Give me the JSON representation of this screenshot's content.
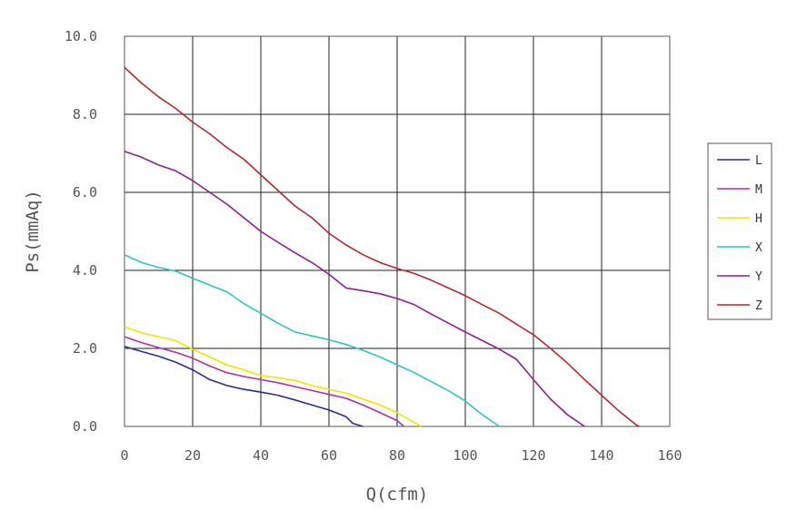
{
  "chart_data": {
    "type": "line",
    "title": "",
    "xlabel": "Q(cfm)",
    "ylabel": "Ps(mmAq)",
    "xlim": [
      0,
      160
    ],
    "ylim": [
      0,
      10
    ],
    "xticks": [
      0,
      20,
      40,
      60,
      80,
      100,
      120,
      140,
      160
    ],
    "xtick_labels": [
      "0",
      "20",
      "40",
      "60",
      "80",
      "100",
      "120",
      "140",
      "160"
    ],
    "yticks": [
      0,
      2,
      4,
      6,
      8,
      10
    ],
    "ytick_labels": [
      "0.0",
      "2.0",
      "4.0",
      "6.0",
      "8.0",
      "10.0"
    ],
    "grid": true,
    "legend_position": "right",
    "series": [
      {
        "name": "L",
        "color": "#2b2d8c",
        "x": [
          0,
          5,
          10,
          15,
          20,
          25,
          30,
          35,
          40,
          45,
          50,
          55,
          60,
          65,
          67,
          70
        ],
        "y": [
          2.05,
          1.92,
          1.8,
          1.65,
          1.45,
          1.2,
          1.05,
          0.95,
          0.88,
          0.8,
          0.68,
          0.55,
          0.42,
          0.25,
          0.08,
          0.0
        ]
      },
      {
        "name": "M",
        "color": "#b0309e",
        "x": [
          0,
          5,
          10,
          15,
          20,
          25,
          30,
          35,
          40,
          45,
          50,
          55,
          60,
          65,
          70,
          75,
          80,
          82
        ],
        "y": [
          2.3,
          2.15,
          2.02,
          1.9,
          1.75,
          1.55,
          1.38,
          1.28,
          1.2,
          1.12,
          1.02,
          0.92,
          0.82,
          0.72,
          0.55,
          0.35,
          0.15,
          0.0
        ]
      },
      {
        "name": "H",
        "color": "#f2e600",
        "x": [
          0,
          5,
          10,
          15,
          20,
          25,
          30,
          35,
          40,
          45,
          50,
          55,
          60,
          65,
          70,
          75,
          80,
          85,
          87
        ],
        "y": [
          2.55,
          2.4,
          2.3,
          2.2,
          1.98,
          1.78,
          1.58,
          1.45,
          1.3,
          1.25,
          1.18,
          1.05,
          0.95,
          0.85,
          0.7,
          0.55,
          0.35,
          0.1,
          0.0
        ]
      },
      {
        "name": "X",
        "color": "#2ec4c0",
        "x": [
          0,
          5,
          10,
          15,
          20,
          25,
          30,
          35,
          40,
          45,
          50,
          55,
          60,
          65,
          70,
          75,
          80,
          85,
          90,
          95,
          100,
          105,
          110
        ],
        "y": [
          4.4,
          4.2,
          4.08,
          3.98,
          3.8,
          3.62,
          3.45,
          3.15,
          2.9,
          2.65,
          2.42,
          2.32,
          2.22,
          2.1,
          1.95,
          1.78,
          1.58,
          1.38,
          1.15,
          0.92,
          0.65,
          0.3,
          0.0
        ]
      },
      {
        "name": "Y",
        "color": "#8b1f8f",
        "x": [
          0,
          5,
          10,
          15,
          20,
          25,
          30,
          35,
          40,
          45,
          50,
          55,
          60,
          65,
          70,
          75,
          80,
          85,
          90,
          95,
          100,
          105,
          110,
          115,
          120,
          125,
          130,
          135
        ],
        "y": [
          7.05,
          6.9,
          6.7,
          6.55,
          6.3,
          6.0,
          5.7,
          5.35,
          5.0,
          4.72,
          4.45,
          4.2,
          3.9,
          3.55,
          3.48,
          3.4,
          3.28,
          3.12,
          2.88,
          2.65,
          2.42,
          2.2,
          1.98,
          1.72,
          1.2,
          0.7,
          0.3,
          0.0
        ]
      },
      {
        "name": "Z",
        "color": "#b22a2a",
        "x": [
          0,
          5,
          10,
          15,
          20,
          25,
          30,
          35,
          40,
          45,
          50,
          55,
          60,
          65,
          70,
          75,
          80,
          85,
          90,
          95,
          100,
          105,
          110,
          115,
          120,
          125,
          130,
          135,
          140,
          145,
          150,
          151
        ],
        "y": [
          9.2,
          8.8,
          8.45,
          8.15,
          7.8,
          7.5,
          7.15,
          6.85,
          6.45,
          6.05,
          5.65,
          5.35,
          4.95,
          4.65,
          4.4,
          4.2,
          4.05,
          3.92,
          3.75,
          3.55,
          3.35,
          3.12,
          2.9,
          2.62,
          2.35,
          2.0,
          1.62,
          1.2,
          0.8,
          0.4,
          0.05,
          0.0
        ]
      }
    ]
  }
}
